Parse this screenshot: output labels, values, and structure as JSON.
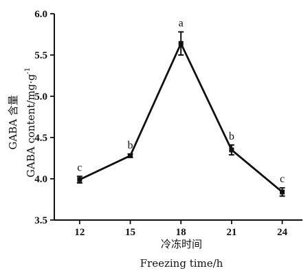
{
  "chart_data": {
    "type": "line",
    "x": [
      12,
      15,
      18,
      21,
      24
    ],
    "series": [
      {
        "values": [
          3.99,
          4.28,
          5.64,
          4.35,
          3.84
        ],
        "errors": [
          0.04,
          0.02,
          0.14,
          0.06,
          0.05
        ],
        "significance": [
          "c",
          "b",
          "a",
          "b",
          "c"
        ]
      }
    ],
    "xlabel_cn": "冷冻时间",
    "xlabel_en": "Freezing time/h",
    "ylabel_cn": "GABA 含量",
    "ylabel_en": "GABA  content/mg·g",
    "ylabel_en_sup": "-1",
    "xticks": [
      "12",
      "15",
      "18",
      "21",
      "24"
    ],
    "yticks": [
      "3.5",
      "4.0",
      "4.5",
      "5.0",
      "5.5",
      "6.0"
    ],
    "xlim": [
      10.5,
      25.2
    ],
    "ylim": [
      3.5,
      6.0
    ],
    "grid": false,
    "line_color": "#111111"
  }
}
